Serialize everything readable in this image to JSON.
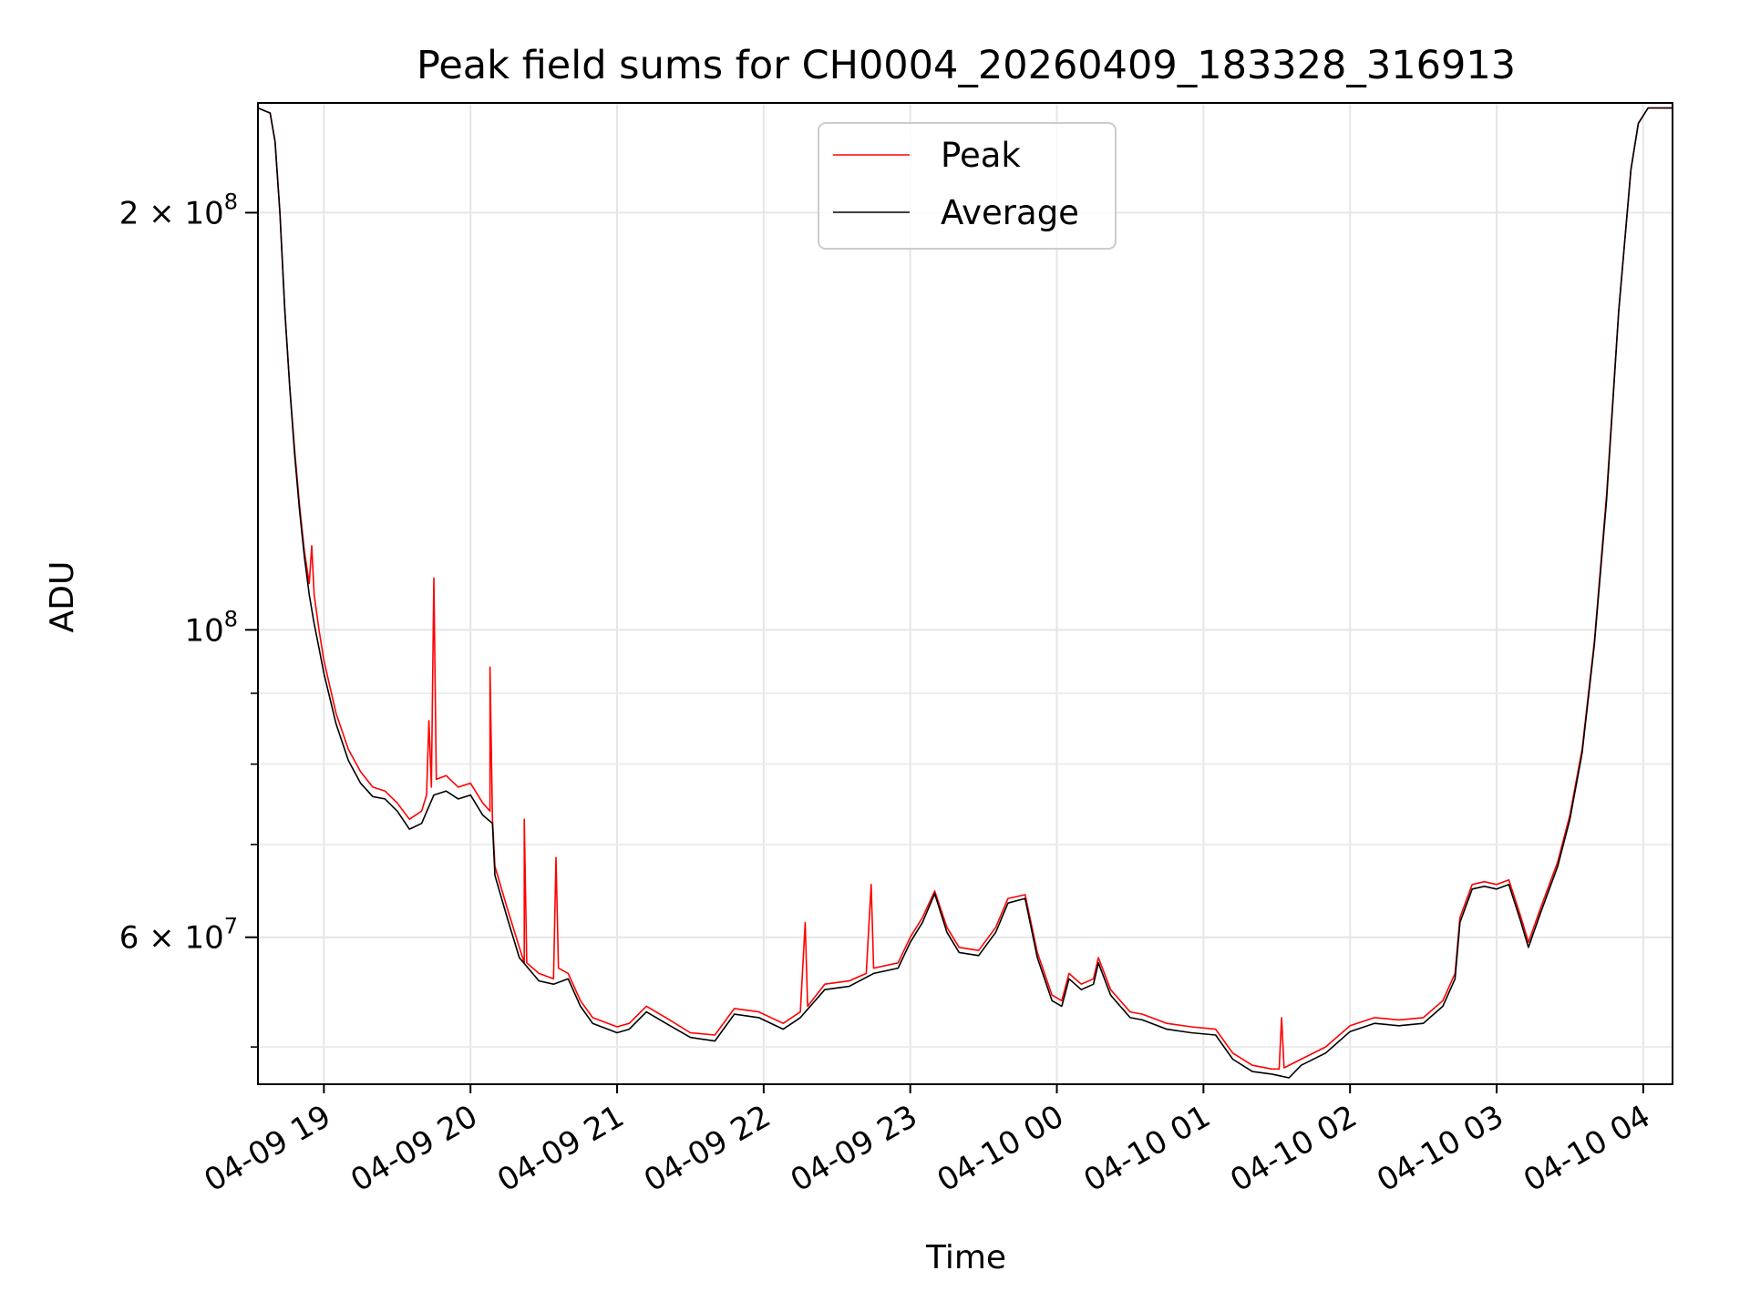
{
  "chart_data": {
    "type": "line",
    "title": "Peak field sums for CH0004_20260409_183328_316913",
    "xlabel": "Time",
    "ylabel": "ADU",
    "y_scale": "log",
    "ylim": [
      47000000,
      240000000
    ],
    "xlim": [
      "2026-04-09 18:33",
      "2026-04-10 04:12"
    ],
    "grid": true,
    "legend_position": "top-center",
    "x_ticks": [
      {
        "time": "2026-04-09 19:00",
        "label": "04-09 19"
      },
      {
        "time": "2026-04-09 20:00",
        "label": "04-09 20"
      },
      {
        "time": "2026-04-09 21:00",
        "label": "04-09 21"
      },
      {
        "time": "2026-04-09 22:00",
        "label": "04-09 22"
      },
      {
        "time": "2026-04-09 23:00",
        "label": "04-09 23"
      },
      {
        "time": "2026-04-10 00:00",
        "label": "04-10 00"
      },
      {
        "time": "2026-04-10 01:00",
        "label": "04-10 01"
      },
      {
        "time": "2026-04-10 02:00",
        "label": "04-10 02"
      },
      {
        "time": "2026-04-10 03:00",
        "label": "04-10 03"
      },
      {
        "time": "2026-04-10 04:00",
        "label": "04-10 04"
      }
    ],
    "y_ticks_major": [
      {
        "value": 200000000,
        "mantissa": "2",
        "base": "10",
        "exp": "8"
      },
      {
        "value": 100000000,
        "mantissa": "",
        "base": "10",
        "exp": "8"
      },
      {
        "value": 60000000,
        "mantissa": "6",
        "base": "10",
        "exp": "7"
      }
    ],
    "y_ticks_minor": [
      50000000,
      70000000,
      80000000,
      90000000
    ],
    "series": [
      {
        "name": "Peak",
        "color": "#ff0000",
        "points": [
          [
            "2026-04-09 18:33",
            238000000
          ],
          [
            "2026-04-09 18:38",
            236000000
          ],
          [
            "2026-04-09 18:40",
            225000000
          ],
          [
            "2026-04-09 18:42",
            200000000
          ],
          [
            "2026-04-09 18:44",
            170000000
          ],
          [
            "2026-04-09 18:46",
            150000000
          ],
          [
            "2026-04-09 18:48",
            135000000
          ],
          [
            "2026-04-09 18:50",
            123000000
          ],
          [
            "2026-04-09 18:52",
            114000000
          ],
          [
            "2026-04-09 18:54",
            108000000
          ],
          [
            "2026-04-09 18:55",
            115000000
          ],
          [
            "2026-04-09 18:56",
            106000000
          ],
          [
            "2026-04-09 18:58",
            100000000
          ],
          [
            "2026-04-09 19:00",
            95000000
          ],
          [
            "2026-04-09 19:05",
            87000000
          ],
          [
            "2026-04-09 19:10",
            82000000
          ],
          [
            "2026-04-09 19:15",
            79000000
          ],
          [
            "2026-04-09 19:20",
            77000000
          ],
          [
            "2026-04-09 19:25",
            76500000
          ],
          [
            "2026-04-09 19:30",
            75000000
          ],
          [
            "2026-04-09 19:35",
            73000000
          ],
          [
            "2026-04-09 19:40",
            74000000
          ],
          [
            "2026-04-09 19:42",
            76000000
          ],
          [
            "2026-04-09 19:43",
            86000000
          ],
          [
            "2026-04-09 19:44",
            77000000
          ],
          [
            "2026-04-09 19:45",
            109000000
          ],
          [
            "2026-04-09 19:46",
            78000000
          ],
          [
            "2026-04-09 19:50",
            78500000
          ],
          [
            "2026-04-09 19:55",
            77000000
          ],
          [
            "2026-04-09 20:00",
            77500000
          ],
          [
            "2026-04-09 20:05",
            75000000
          ],
          [
            "2026-04-09 20:08",
            74000000
          ],
          [
            "2026-04-09 20:08",
            94000000
          ],
          [
            "2026-04-09 20:09",
            73000000
          ],
          [
            "2026-04-09 20:10",
            67500000
          ],
          [
            "2026-04-09 20:15",
            63000000
          ],
          [
            "2026-04-09 20:20",
            59000000
          ],
          [
            "2026-04-09 20:22",
            57500000
          ],
          [
            "2026-04-09 20:22",
            73000000
          ],
          [
            "2026-04-09 20:23",
            57500000
          ],
          [
            "2026-04-09 20:28",
            56500000
          ],
          [
            "2026-04-09 20:34",
            56000000
          ],
          [
            "2026-04-09 20:35",
            68500000
          ],
          [
            "2026-04-09 20:36",
            57000000
          ],
          [
            "2026-04-09 20:40",
            56500000
          ],
          [
            "2026-04-09 20:45",
            54000000
          ],
          [
            "2026-04-09 20:50",
            52500000
          ],
          [
            "2026-04-09 21:00",
            51700000
          ],
          [
            "2026-04-09 21:05",
            52000000
          ],
          [
            "2026-04-09 21:12",
            53500000
          ],
          [
            "2026-04-09 21:20",
            52500000
          ],
          [
            "2026-04-09 21:30",
            51200000
          ],
          [
            "2026-04-09 21:40",
            51000000
          ],
          [
            "2026-04-09 21:48",
            53300000
          ],
          [
            "2026-04-09 21:58",
            53000000
          ],
          [
            "2026-04-09 22:08",
            52000000
          ],
          [
            "2026-04-09 22:15",
            53000000
          ],
          [
            "2026-04-09 22:17",
            61500000
          ],
          [
            "2026-04-09 22:18",
            53500000
          ],
          [
            "2026-04-09 22:25",
            55500000
          ],
          [
            "2026-04-09 22:35",
            55800000
          ],
          [
            "2026-04-09 22:42",
            56500000
          ],
          [
            "2026-04-09 22:44",
            65500000
          ],
          [
            "2026-04-09 22:45",
            57000000
          ],
          [
            "2026-04-09 22:55",
            57500000
          ],
          [
            "2026-04-09 23:00",
            60000000
          ],
          [
            "2026-04-09 23:05",
            62000000
          ],
          [
            "2026-04-09 23:10",
            64800000
          ],
          [
            "2026-04-09 23:15",
            61000000
          ],
          [
            "2026-04-09 23:20",
            59000000
          ],
          [
            "2026-04-09 23:28",
            58700000
          ],
          [
            "2026-04-09 23:35",
            61000000
          ],
          [
            "2026-04-09 23:40",
            64000000
          ],
          [
            "2026-04-09 23:47",
            64400000
          ],
          [
            "2026-04-09 23:52",
            58500000
          ],
          [
            "2026-04-09 23:58",
            54500000
          ],
          [
            "2026-04-10 00:02",
            54000000
          ],
          [
            "2026-04-10 00:05",
            56500000
          ],
          [
            "2026-04-10 00:10",
            55500000
          ],
          [
            "2026-04-10 00:15",
            56000000
          ],
          [
            "2026-04-10 00:17",
            58000000
          ],
          [
            "2026-04-10 00:22",
            55000000
          ],
          [
            "2026-04-10 00:30",
            53000000
          ],
          [
            "2026-04-10 00:35",
            52800000
          ],
          [
            "2026-04-10 00:45",
            52000000
          ],
          [
            "2026-04-10 00:55",
            51700000
          ],
          [
            "2026-04-10 01:05",
            51500000
          ],
          [
            "2026-04-10 01:12",
            49500000
          ],
          [
            "2026-04-10 01:20",
            48500000
          ],
          [
            "2026-04-10 01:28",
            48200000
          ],
          [
            "2026-04-10 01:31",
            48200000
          ],
          [
            "2026-04-10 01:32",
            52500000
          ],
          [
            "2026-04-10 01:33",
            48300000
          ],
          [
            "2026-04-10 01:40",
            49000000
          ],
          [
            "2026-04-10 01:50",
            50000000
          ],
          [
            "2026-04-10 02:00",
            51800000
          ],
          [
            "2026-04-10 02:10",
            52500000
          ],
          [
            "2026-04-10 02:20",
            52300000
          ],
          [
            "2026-04-10 02:30",
            52500000
          ],
          [
            "2026-04-10 02:38",
            54000000
          ],
          [
            "2026-04-10 02:43",
            56500000
          ],
          [
            "2026-04-10 02:45",
            62000000
          ],
          [
            "2026-04-10 02:50",
            65500000
          ],
          [
            "2026-04-10 02:55",
            65800000
          ],
          [
            "2026-04-10 03:00",
            65500000
          ],
          [
            "2026-04-10 03:05",
            66000000
          ],
          [
            "2026-04-10 03:10",
            62000000
          ],
          [
            "2026-04-10 03:13",
            59500000
          ],
          [
            "2026-04-10 03:18",
            63000000
          ],
          [
            "2026-04-10 03:25",
            68000000
          ],
          [
            "2026-04-10 03:30",
            73500000
          ],
          [
            "2026-04-10 03:35",
            82000000
          ],
          [
            "2026-04-10 03:40",
            98000000
          ],
          [
            "2026-04-10 03:45",
            125000000
          ],
          [
            "2026-04-10 03:50",
            170000000
          ],
          [
            "2026-04-10 03:55",
            215000000
          ],
          [
            "2026-04-10 03:58",
            232000000
          ],
          [
            "2026-04-10 04:02",
            238000000
          ],
          [
            "2026-04-10 04:12",
            238000000
          ]
        ]
      },
      {
        "name": "Average",
        "color": "#000000",
        "points": [
          [
            "2026-04-09 18:33",
            238000000
          ],
          [
            "2026-04-09 18:38",
            236000000
          ],
          [
            "2026-04-09 18:40",
            225000000
          ],
          [
            "2026-04-09 18:42",
            200000000
          ],
          [
            "2026-04-09 18:44",
            170000000
          ],
          [
            "2026-04-09 18:46",
            150000000
          ],
          [
            "2026-04-09 18:48",
            134000000
          ],
          [
            "2026-04-09 18:50",
            122000000
          ],
          [
            "2026-04-09 18:52",
            113000000
          ],
          [
            "2026-04-09 18:54",
            106000000
          ],
          [
            "2026-04-09 18:56",
            101000000
          ],
          [
            "2026-04-09 18:58",
            97000000
          ],
          [
            "2026-04-09 19:00",
            93000000
          ],
          [
            "2026-04-09 19:05",
            85500000
          ],
          [
            "2026-04-09 19:10",
            80500000
          ],
          [
            "2026-04-09 19:15",
            77500000
          ],
          [
            "2026-04-09 19:20",
            75800000
          ],
          [
            "2026-04-09 19:25",
            75500000
          ],
          [
            "2026-04-09 19:30",
            74000000
          ],
          [
            "2026-04-09 19:35",
            71800000
          ],
          [
            "2026-04-09 19:40",
            72500000
          ],
          [
            "2026-04-09 19:45",
            76000000
          ],
          [
            "2026-04-09 19:50",
            76500000
          ],
          [
            "2026-04-09 19:55",
            75500000
          ],
          [
            "2026-04-09 20:00",
            76000000
          ],
          [
            "2026-04-09 20:05",
            73500000
          ],
          [
            "2026-04-09 20:09",
            72500000
          ],
          [
            "2026-04-09 20:10",
            66500000
          ],
          [
            "2026-04-09 20:15",
            62000000
          ],
          [
            "2026-04-09 20:20",
            58000000
          ],
          [
            "2026-04-09 20:28",
            55800000
          ],
          [
            "2026-04-09 20:34",
            55500000
          ],
          [
            "2026-04-09 20:40",
            56000000
          ],
          [
            "2026-04-09 20:45",
            53500000
          ],
          [
            "2026-04-09 20:50",
            52000000
          ],
          [
            "2026-04-09 21:00",
            51200000
          ],
          [
            "2026-04-09 21:05",
            51500000
          ],
          [
            "2026-04-09 21:12",
            53000000
          ],
          [
            "2026-04-09 21:20",
            52000000
          ],
          [
            "2026-04-09 21:30",
            50800000
          ],
          [
            "2026-04-09 21:40",
            50500000
          ],
          [
            "2026-04-09 21:48",
            52800000
          ],
          [
            "2026-04-09 21:58",
            52500000
          ],
          [
            "2026-04-09 22:08",
            51500000
          ],
          [
            "2026-04-09 22:15",
            52500000
          ],
          [
            "2026-04-09 22:25",
            55000000
          ],
          [
            "2026-04-09 22:35",
            55300000
          ],
          [
            "2026-04-09 22:45",
            56500000
          ],
          [
            "2026-04-09 22:55",
            57000000
          ],
          [
            "2026-04-09 23:00",
            59500000
          ],
          [
            "2026-04-09 23:05",
            61500000
          ],
          [
            "2026-04-09 23:10",
            64500000
          ],
          [
            "2026-04-09 23:15",
            60500000
          ],
          [
            "2026-04-09 23:20",
            58500000
          ],
          [
            "2026-04-09 23:28",
            58200000
          ],
          [
            "2026-04-09 23:35",
            60500000
          ],
          [
            "2026-04-09 23:40",
            63500000
          ],
          [
            "2026-04-09 23:47",
            64000000
          ],
          [
            "2026-04-09 23:52",
            58000000
          ],
          [
            "2026-04-09 23:58",
            54000000
          ],
          [
            "2026-04-10 00:02",
            53500000
          ],
          [
            "2026-04-10 00:05",
            56000000
          ],
          [
            "2026-04-10 00:10",
            55000000
          ],
          [
            "2026-04-10 00:15",
            55500000
          ],
          [
            "2026-04-10 00:17",
            57500000
          ],
          [
            "2026-04-10 00:22",
            54500000
          ],
          [
            "2026-04-10 00:30",
            52500000
          ],
          [
            "2026-04-10 00:35",
            52300000
          ],
          [
            "2026-04-10 00:45",
            51500000
          ],
          [
            "2026-04-10 00:55",
            51200000
          ],
          [
            "2026-04-10 01:05",
            51000000
          ],
          [
            "2026-04-10 01:12",
            49000000
          ],
          [
            "2026-04-10 01:20",
            48000000
          ],
          [
            "2026-04-10 01:28",
            47800000
          ],
          [
            "2026-04-10 01:35",
            47500000
          ],
          [
            "2026-04-10 01:40",
            48500000
          ],
          [
            "2026-04-10 01:50",
            49500000
          ],
          [
            "2026-04-10 02:00",
            51300000
          ],
          [
            "2026-04-10 02:10",
            52000000
          ],
          [
            "2026-04-10 02:20",
            51800000
          ],
          [
            "2026-04-10 02:30",
            52000000
          ],
          [
            "2026-04-10 02:38",
            53500000
          ],
          [
            "2026-04-10 02:43",
            56000000
          ],
          [
            "2026-04-10 02:45",
            61500000
          ],
          [
            "2026-04-10 02:50",
            65000000
          ],
          [
            "2026-04-10 02:55",
            65300000
          ],
          [
            "2026-04-10 03:00",
            65000000
          ],
          [
            "2026-04-10 03:05",
            65500000
          ],
          [
            "2026-04-10 03:10",
            61500000
          ],
          [
            "2026-04-10 03:13",
            59000000
          ],
          [
            "2026-04-10 03:18",
            62500000
          ],
          [
            "2026-04-10 03:25",
            67500000
          ],
          [
            "2026-04-10 03:30",
            73000000
          ],
          [
            "2026-04-10 03:35",
            81500000
          ],
          [
            "2026-04-10 03:40",
            97500000
          ],
          [
            "2026-04-10 03:45",
            124000000
          ],
          [
            "2026-04-10 03:50",
            170000000
          ],
          [
            "2026-04-10 03:55",
            215000000
          ],
          [
            "2026-04-10 03:58",
            232000000
          ],
          [
            "2026-04-10 04:02",
            238000000
          ],
          [
            "2026-04-10 04:12",
            238000000
          ]
        ]
      }
    ]
  }
}
